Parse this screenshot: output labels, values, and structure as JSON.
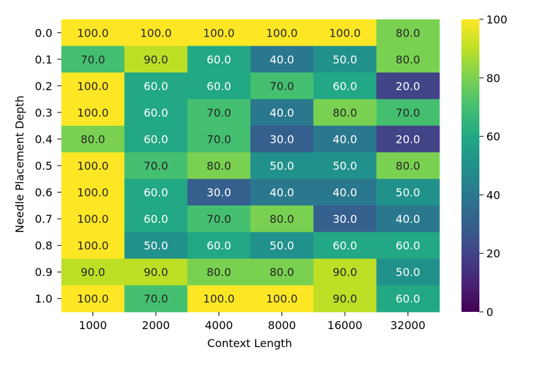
{
  "chart_data": {
    "type": "heatmap",
    "title": "",
    "xlabel": "Context Length",
    "ylabel": "Needle Placement Depth",
    "x_categories": [
      "1000",
      "2000",
      "4000",
      "8000",
      "16000",
      "32000"
    ],
    "y_categories": [
      "0.0",
      "0.1",
      "0.2",
      "0.3",
      "0.4",
      "0.5",
      "0.6",
      "0.7",
      "0.8",
      "0.9",
      "1.0"
    ],
    "values": [
      [
        100.0,
        100.0,
        100.0,
        100.0,
        100.0,
        80.0
      ],
      [
        70.0,
        90.0,
        60.0,
        40.0,
        50.0,
        80.0
      ],
      [
        100.0,
        60.0,
        60.0,
        70.0,
        60.0,
        20.0
      ],
      [
        100.0,
        60.0,
        70.0,
        40.0,
        80.0,
        70.0
      ],
      [
        80.0,
        60.0,
        70.0,
        30.0,
        40.0,
        20.0
      ],
      [
        100.0,
        70.0,
        80.0,
        50.0,
        50.0,
        80.0
      ],
      [
        100.0,
        60.0,
        30.0,
        40.0,
        40.0,
        50.0
      ],
      [
        100.0,
        60.0,
        70.0,
        80.0,
        30.0,
        40.0
      ],
      [
        100.0,
        50.0,
        60.0,
        50.0,
        60.0,
        60.0
      ],
      [
        90.0,
        90.0,
        80.0,
        80.0,
        90.0,
        50.0
      ],
      [
        100.0,
        70.0,
        100.0,
        100.0,
        90.0,
        60.0
      ]
    ],
    "value_format": "0.0",
    "colormap": "viridis",
    "color_range": [
      0,
      100
    ],
    "colorbar_ticks": [
      "0",
      "20",
      "40",
      "60",
      "80",
      "100"
    ],
    "colorbar_tick_values": [
      0,
      20,
      40,
      60,
      80,
      100
    ]
  }
}
